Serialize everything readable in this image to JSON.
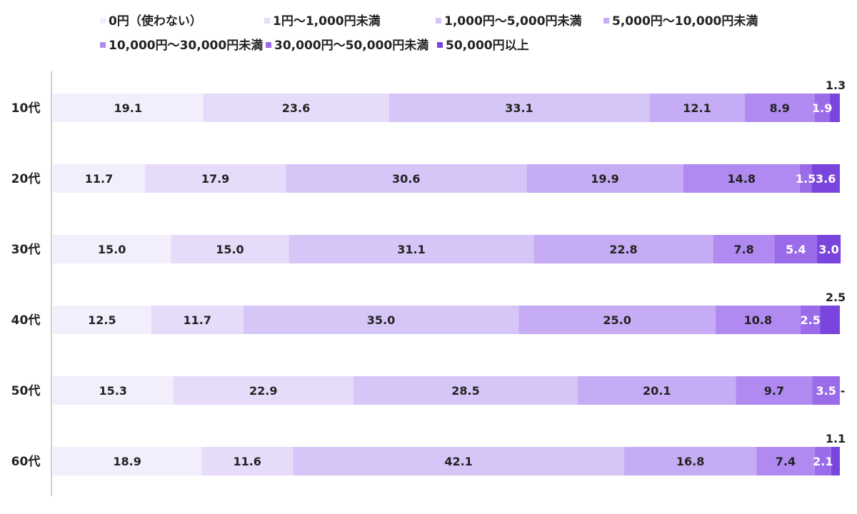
{
  "chart_data": {
    "type": "bar",
    "orientation": "horizontal",
    "stacked": true,
    "categories": [
      "10代",
      "20代",
      "30代",
      "40代",
      "50代",
      "60代"
    ],
    "series": [
      {
        "name": "0円（使わない）",
        "color": "#f3eefc",
        "values": [
          19.1,
          11.7,
          15.0,
          12.5,
          15.3,
          18.9
        ]
      },
      {
        "name": "1円～1,000円未満",
        "color": "#e6dcfa",
        "values": [
          23.6,
          17.9,
          15.0,
          11.7,
          22.9,
          11.6
        ]
      },
      {
        "name": "1,000円～5,000円未満",
        "color": "#d6c6f8",
        "values": [
          33.1,
          30.6,
          31.1,
          35.0,
          28.5,
          42.1
        ]
      },
      {
        "name": "5,000円～10,000円未満",
        "color": "#c6acf4",
        "values": [
          12.1,
          19.9,
          22.8,
          25.0,
          20.1,
          16.8
        ]
      },
      {
        "name": "10,000円～30,000円未満",
        "color": "#b08af0",
        "values": [
          8.9,
          14.8,
          7.8,
          10.8,
          9.7,
          7.4
        ]
      },
      {
        "name": "30,000円～50,000円未満",
        "color": "#9a6ce9",
        "values": [
          1.9,
          1.5,
          5.4,
          2.5,
          3.5,
          2.1
        ]
      },
      {
        "name": "50,000円以上",
        "color": "#7a45dc",
        "values": [
          1.3,
          3.6,
          3.0,
          2.5,
          null,
          1.1
        ]
      }
    ],
    "labels": [
      [
        "19.1",
        "23.6",
        "33.1",
        "12.1",
        "8.9",
        "1.9",
        "1.3"
      ],
      [
        "11.7",
        "17.9",
        "30.6",
        "19.9",
        "14.8",
        "1.5",
        "3.6"
      ],
      [
        "15.0",
        "15.0",
        "31.1",
        "22.8",
        "7.8",
        "5.4",
        "3.0"
      ],
      [
        "12.5",
        "11.7",
        "35.0",
        "25.0",
        "10.8",
        "2.5",
        "2.5"
      ],
      [
        "15.3",
        "22.9",
        "28.5",
        "20.1",
        "9.7",
        "3.5",
        "-"
      ],
      [
        "18.9",
        "11.6",
        "42.1",
        "16.8",
        "7.4",
        "2.1",
        "1.1"
      ]
    ],
    "title": "",
    "xlabel": "",
    "ylabel": "",
    "xlim": [
      0,
      100
    ],
    "grid": false,
    "legend_position": "top"
  }
}
